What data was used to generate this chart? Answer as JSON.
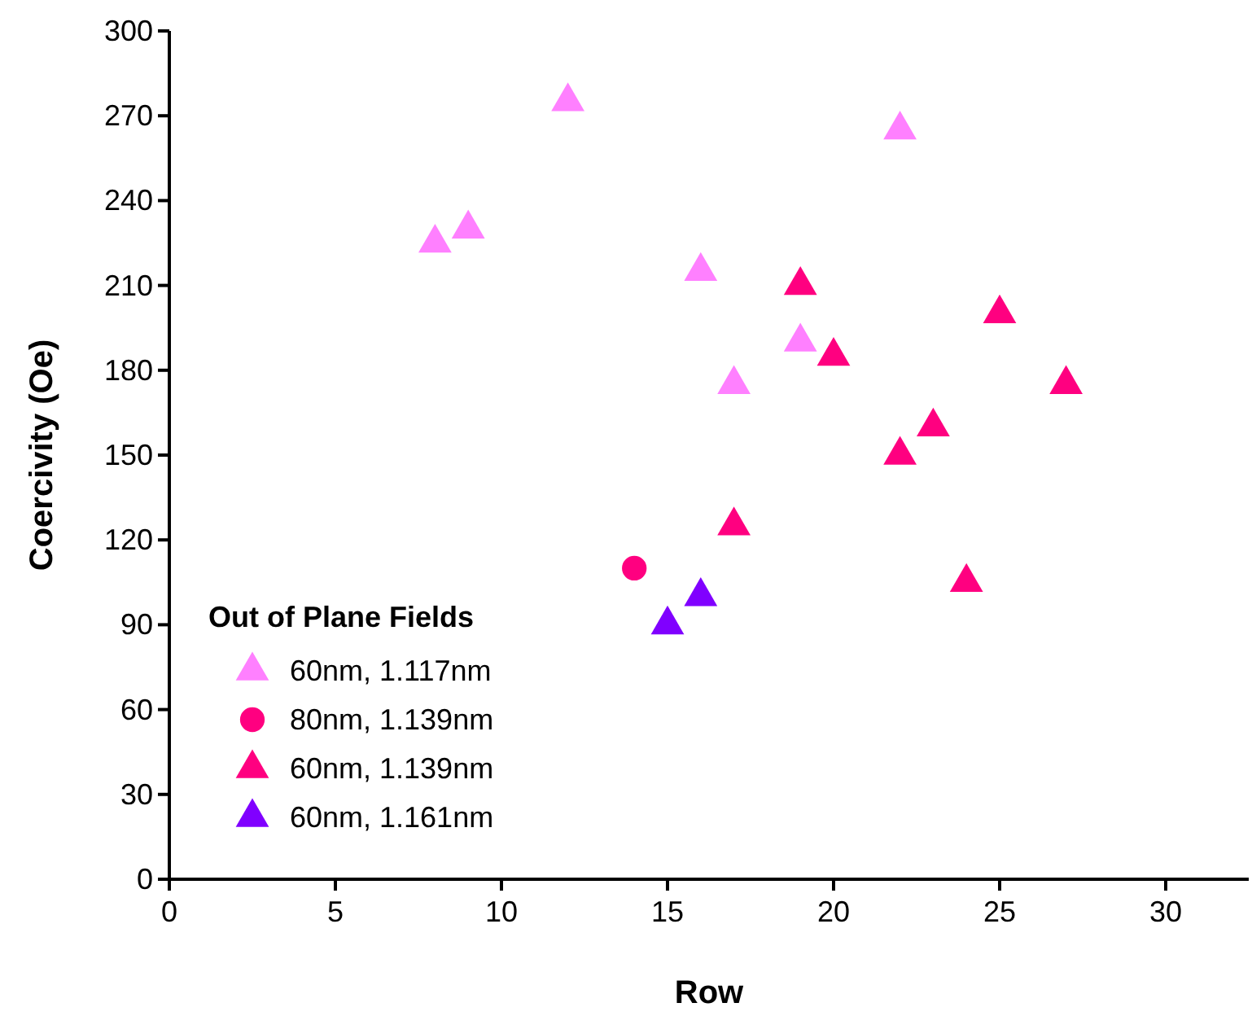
{
  "chart_data": {
    "type": "scatter",
    "xlabel": "Row",
    "ylabel": "Coercivity (Oe)",
    "legend_title": "Out of Plane Fields",
    "legend": "bottom left",
    "grid": false,
    "xlim": [
      0,
      32.5
    ],
    "xticks": [
      0,
      5,
      10,
      15,
      20,
      25,
      30
    ],
    "ylim": [
      0,
      300
    ],
    "yticks": [
      0,
      30,
      60,
      90,
      120,
      150,
      180,
      210,
      240,
      270,
      300
    ],
    "series": [
      {
        "name": "60nm, 1.117nm",
        "color": "#ff80ff",
        "marker": "triangle",
        "x": [
          8,
          9,
          12,
          16,
          17,
          19,
          22
        ],
        "values": [
          225,
          230,
          275,
          215,
          175,
          190,
          265
        ]
      },
      {
        "name": "80nm, 1.139nm",
        "color": "#ff0080",
        "marker": "circle",
        "x": [
          14
        ],
        "values": [
          110
        ]
      },
      {
        "name": "60nm, 1.139nm",
        "color": "#ff0080",
        "marker": "triangle",
        "x": [
          17,
          19,
          20,
          22,
          23,
          24,
          25,
          27
        ],
        "values": [
          125,
          210,
          185,
          150,
          160,
          105,
          200,
          175
        ]
      },
      {
        "name": "60nm, 1.161nm",
        "color": "#8000ff",
        "marker": "triangle",
        "x": [
          15,
          16
        ],
        "values": [
          90,
          100
        ]
      }
    ]
  }
}
